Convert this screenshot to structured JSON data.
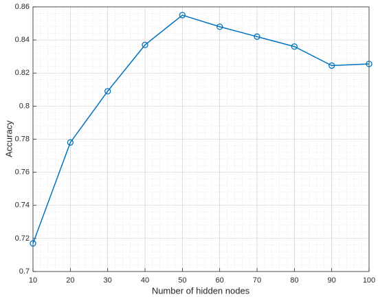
{
  "chart_data": {
    "type": "line",
    "xlabel": "Number of hidden nodes",
    "ylabel": "Accuracy",
    "x": [
      10,
      20,
      30,
      40,
      50,
      60,
      70,
      80,
      90,
      100
    ],
    "series": [
      {
        "color": "#0072bd",
        "marker": "circle",
        "values": [
          0.717,
          0.778,
          0.809,
          0.837,
          0.855,
          0.848,
          0.842,
          0.836,
          0.8245,
          0.8255
        ]
      }
    ],
    "xlim": [
      10,
      100
    ],
    "xticks": [
      10,
      20,
      30,
      40,
      50,
      60,
      70,
      80,
      90,
      100
    ],
    "ylim": [
      0.7,
      0.86
    ],
    "yticks": [
      0.7,
      0.72,
      0.74,
      0.76,
      0.78,
      0.8,
      0.82,
      0.84,
      0.86
    ],
    "grid": true,
    "minor_grid": true
  }
}
